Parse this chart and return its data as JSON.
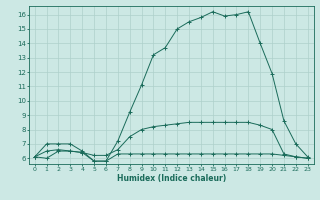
{
  "title": "",
  "xlabel": "Humidex (Indice chaleur)",
  "bg_color": "#cce8e4",
  "line_color": "#1a6b5a",
  "grid_color": "#aed0cb",
  "x_data": [
    0,
    1,
    2,
    3,
    4,
    5,
    6,
    7,
    8,
    9,
    10,
    11,
    12,
    13,
    14,
    15,
    16,
    17,
    18,
    19,
    20,
    21,
    22,
    23
  ],
  "y_max": [
    6.1,
    7.0,
    7.0,
    7.0,
    6.5,
    5.8,
    5.8,
    7.2,
    9.2,
    11.1,
    13.2,
    13.7,
    15.0,
    15.5,
    15.8,
    16.2,
    15.9,
    16.0,
    16.2,
    14.0,
    11.9,
    8.6,
    7.0,
    6.1
  ],
  "y_mean": [
    6.1,
    6.5,
    6.6,
    6.5,
    6.4,
    6.2,
    6.2,
    6.6,
    7.5,
    8.0,
    8.2,
    8.3,
    8.4,
    8.5,
    8.5,
    8.5,
    8.5,
    8.5,
    8.5,
    8.3,
    8.0,
    6.3,
    6.1,
    6.0
  ],
  "y_min": [
    6.1,
    6.0,
    6.5,
    6.5,
    6.4,
    5.8,
    5.8,
    6.3,
    6.3,
    6.3,
    6.3,
    6.3,
    6.3,
    6.3,
    6.3,
    6.3,
    6.3,
    6.3,
    6.3,
    6.3,
    6.3,
    6.2,
    6.1,
    6.0
  ],
  "ylim": [
    5.6,
    16.6
  ],
  "xlim": [
    -0.5,
    23.5
  ],
  "yticks": [
    6,
    7,
    8,
    9,
    10,
    11,
    12,
    13,
    14,
    15,
    16
  ]
}
